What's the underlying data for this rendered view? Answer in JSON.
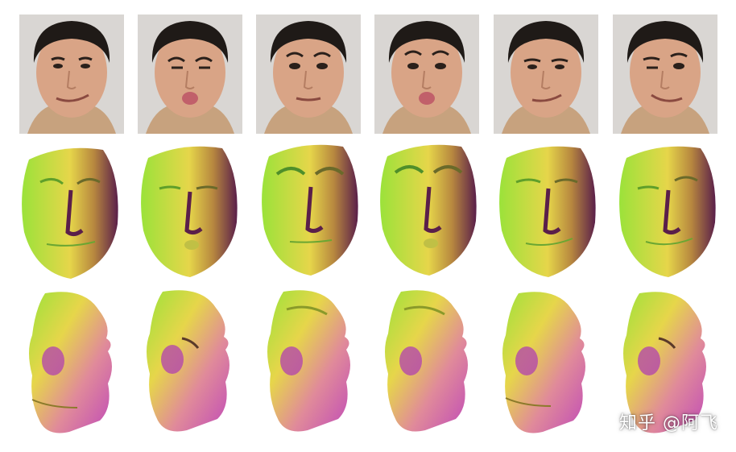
{
  "figure": {
    "columns": [
      {
        "expression": "smile-asymmetric",
        "eyes": "open",
        "mouth": "smirk"
      },
      {
        "expression": "pucker-squint",
        "eyes": "squint",
        "mouth": "pucker"
      },
      {
        "expression": "neutral-raised-brows",
        "eyes": "open",
        "mouth": "closed"
      },
      {
        "expression": "pucker-raised-brows",
        "eyes": "open",
        "mouth": "pucker"
      },
      {
        "expression": "smirk-lowered-brows",
        "eyes": "open",
        "mouth": "smirk"
      },
      {
        "expression": "wink-smirk",
        "eyes": "wink",
        "mouth": "smirk"
      }
    ],
    "rows": [
      "input-photo",
      "front-mesh-render",
      "side-mesh-render"
    ]
  },
  "colors": {
    "background": "#ffffff",
    "photo_bg": "#d9d6d3",
    "hair": "#1f1a17",
    "skin": "#d9a486",
    "mesh_green": "#9be23a",
    "mesh_yellow": "#e6d64a",
    "mesh_purple": "#5a1f4a",
    "mesh_magenta": "#c04ab8",
    "mesh_pink": "#e08a9a"
  },
  "watermark": {
    "text": "知乎 @阿飞"
  }
}
